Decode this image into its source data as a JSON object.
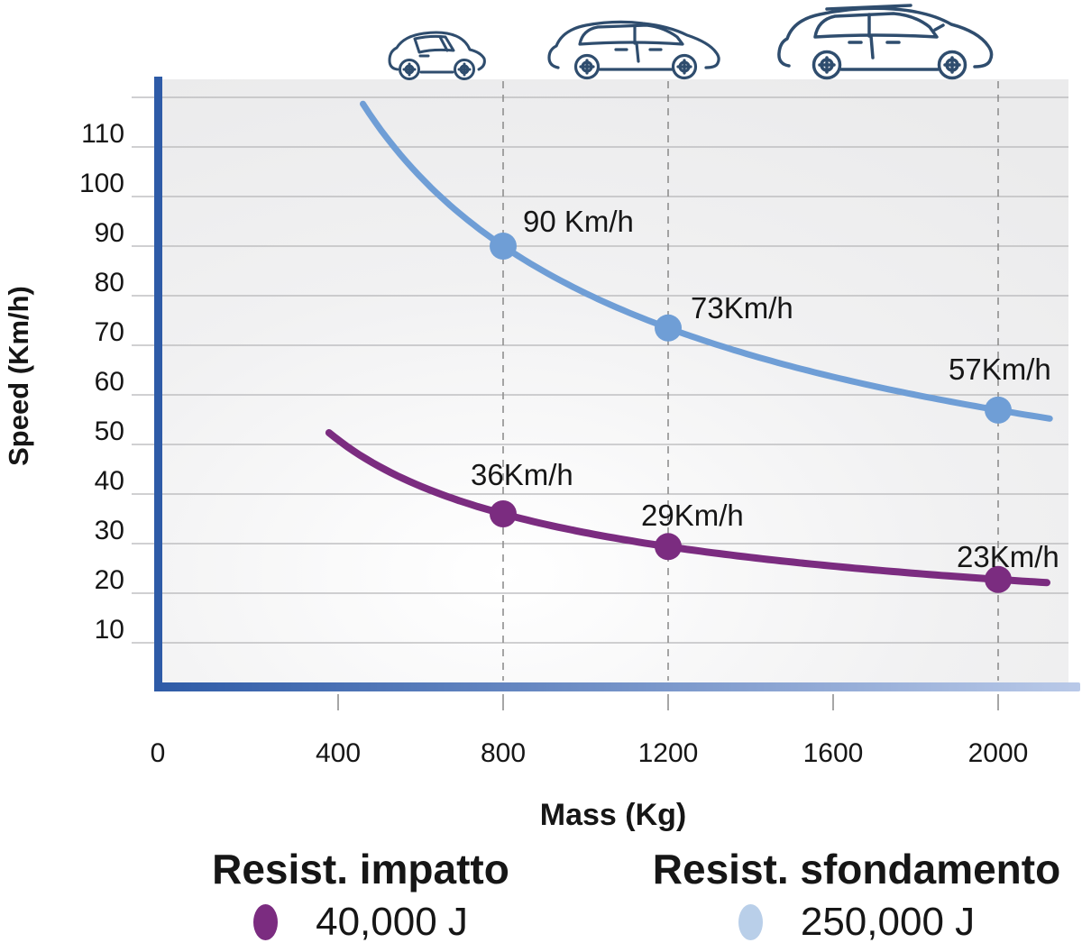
{
  "chart_data": {
    "type": "line",
    "title": "",
    "xlabel": "Mass (Kg)",
    "ylabel": "Speed (Km/h)",
    "x_ticks": [
      0,
      400,
      800,
      1200,
      1600,
      2000
    ],
    "y_ticks": [
      10,
      20,
      30,
      40,
      50,
      60,
      70,
      80,
      90,
      100,
      110
    ],
    "y_top_gridline": 120,
    "xlim": [
      0,
      2150
    ],
    "ylim": [
      0,
      124
    ],
    "grid": true,
    "legend_position": "bottom",
    "dashed_mass_lines": [
      800,
      1200,
      2000
    ],
    "series": [
      {
        "name": "Resist. impatto",
        "legend_value": "40,000 J",
        "energy_joules": 40000,
        "color": "#7b2c80",
        "legend_dot_color": "#7b2c80",
        "mass_domain": [
          378,
          2125
        ],
        "points": [
          {
            "mass": 800,
            "speed": 36,
            "label": "36Km/h"
          },
          {
            "mass": 1200,
            "speed": 29,
            "label": "29Km/h"
          },
          {
            "mass": 2000,
            "speed": 23,
            "label": "23Km/h"
          }
        ]
      },
      {
        "name": "Resist. sfondamento",
        "legend_value": "250,000 J",
        "energy_joules": 250000,
        "color": "#6f9ed6",
        "legend_dot_color": "#b9cfe9",
        "mass_domain": [
          460,
          2125
        ],
        "points": [
          {
            "mass": 800,
            "speed": 90,
            "label": "90 Km/h"
          },
          {
            "mass": 1200,
            "speed": 73,
            "label": "73Km/h"
          },
          {
            "mass": 2000,
            "speed": 57,
            "label": "57Km/h"
          }
        ]
      }
    ]
  },
  "icons": {
    "car_icons": [
      "city-car-icon",
      "hatchback-car-icon",
      "suv-car-icon"
    ]
  },
  "colors": {
    "axis": "#2e5ba7",
    "axis_bar_end": "#b9c9e8",
    "grid": "#b5b5b7",
    "dashed_line": "#8f8f8f",
    "plot_background": "#ebebec",
    "car_outline": "#2f4d6e",
    "text": "#161616"
  }
}
